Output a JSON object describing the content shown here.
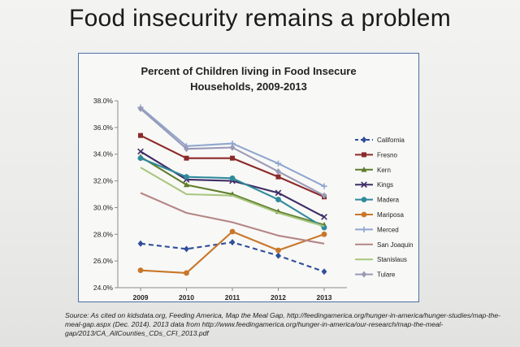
{
  "slide": {
    "title": "Food insecurity remains a problem",
    "source": "Source: As cited on kidsdata.org, Feeding America, Map the Meal Gap, http://feedingamerica.org/hunger-in-america/hunger-studies/map-the-meal-gap.aspx (Dec. 2014). 2013 data from http://www.feedingamerica.org/hunger-in-america/our-research/map-the-meal-gap/2013/CA_AllCounties_CDs_CFI_2013.pdf"
  },
  "chart_data": {
    "type": "line",
    "title_line1": "Percent of Children living in Food Insecure",
    "title_line2": "Households, 2009-2013",
    "x": [
      "2009",
      "2010",
      "2011",
      "2012",
      "2013"
    ],
    "ylim": [
      24.0,
      38.0
    ],
    "yticks": [
      "24.0%",
      "26.0%",
      "28.0%",
      "30.0%",
      "32.0%",
      "34.0%",
      "36.0%",
      "38.0%"
    ],
    "legend_position": "right",
    "grid": false,
    "series": [
      {
        "name": "California",
        "values": [
          27.3,
          26.9,
          27.4,
          26.4,
          25.2
        ],
        "color": "#2f4f9a",
        "marker": "diamond",
        "dash": true
      },
      {
        "name": "Fresno",
        "values": [
          35.4,
          33.7,
          33.7,
          32.3,
          30.8
        ],
        "color": "#8b2a2a",
        "marker": "square",
        "dash": false
      },
      {
        "name": "Kern",
        "values": [
          33.8,
          31.7,
          31.0,
          29.7,
          28.7
        ],
        "color": "#5e7d2a",
        "marker": "triangle",
        "dash": false
      },
      {
        "name": "Kings",
        "values": [
          34.2,
          32.1,
          32.0,
          31.1,
          29.3
        ],
        "color": "#3f2d66",
        "marker": "x",
        "dash": false
      },
      {
        "name": "Madera",
        "values": [
          33.7,
          32.3,
          32.2,
          30.6,
          28.5
        ],
        "color": "#2e8a9c",
        "marker": "circle",
        "dash": false
      },
      {
        "name": "Mariposa",
        "values": [
          25.3,
          25.1,
          28.2,
          26.8,
          28.0
        ],
        "color": "#c8772a",
        "marker": "circle",
        "dash": false
      },
      {
        "name": "Merced",
        "values": [
          37.5,
          34.6,
          34.8,
          33.3,
          31.6
        ],
        "color": "#8fa6cf",
        "marker": "plus",
        "dash": false
      },
      {
        "name": "San Joaquin",
        "values": [
          31.1,
          29.6,
          28.9,
          27.9,
          27.3
        ],
        "color": "#b58686",
        "marker": "none",
        "dash": false
      },
      {
        "name": "Stanislaus",
        "values": [
          33.0,
          31.0,
          30.9,
          29.6,
          28.6
        ],
        "color": "#a7c67f",
        "marker": "none",
        "dash": false
      },
      {
        "name": "Tulare",
        "values": [
          37.4,
          34.4,
          34.5,
          32.7,
          30.9
        ],
        "color": "#9a9ab8",
        "marker": "diamond",
        "dash": false
      }
    ]
  }
}
